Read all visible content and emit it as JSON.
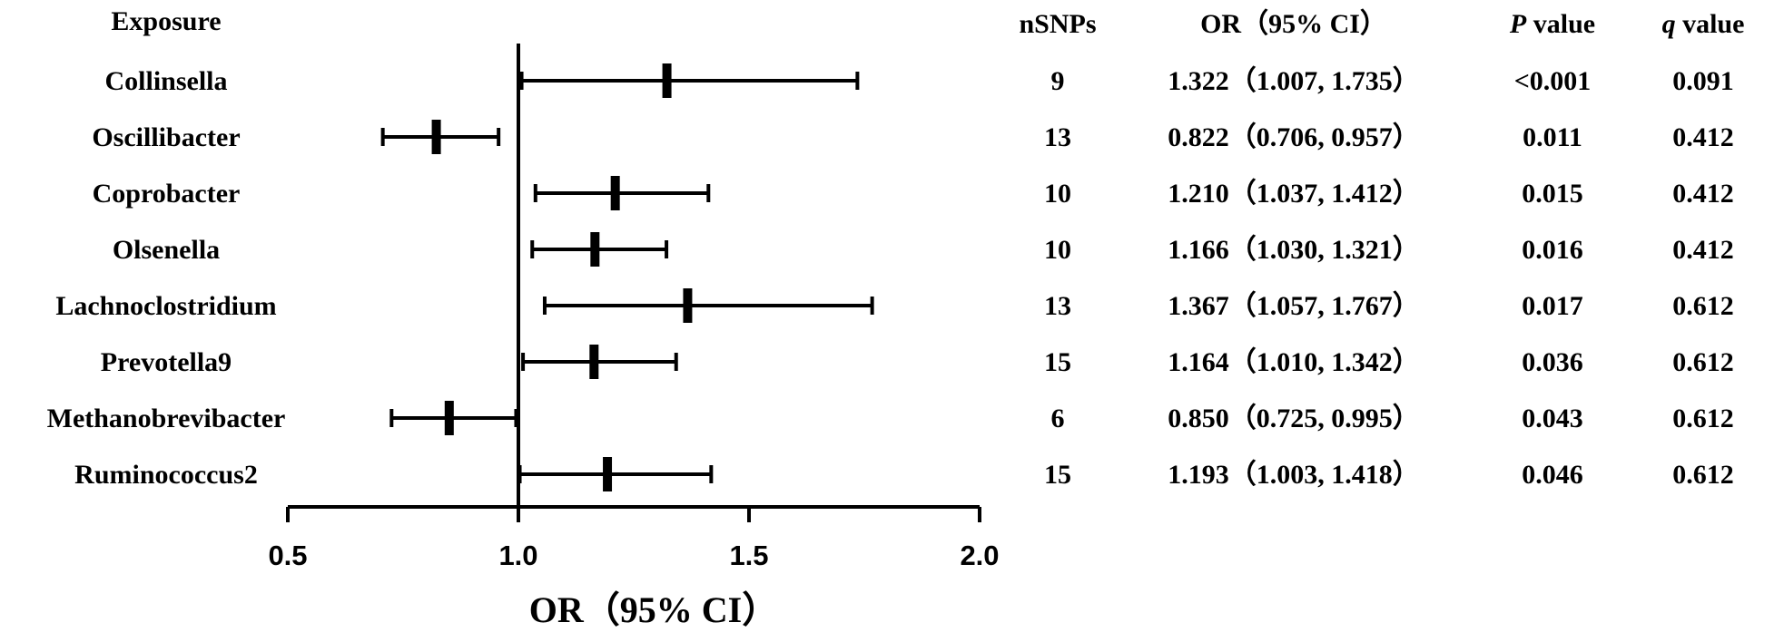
{
  "chart_data": {
    "type": "forest",
    "headers": {
      "exposure": "Exposure",
      "nsnps": "nSNPs",
      "or_ci": "OR（95% CI）",
      "p_italic": "P",
      "p_rest": " value",
      "q_italic": "q",
      "q_rest": " value"
    },
    "xlabel": "OR（95% CI）",
    "xlim": [
      0.5,
      2.0
    ],
    "xticks": [
      0.5,
      1.0,
      1.5,
      2.0
    ],
    "xtick_labels": [
      "0.5",
      "1.0",
      "1.5",
      "2.0"
    ],
    "reference_line": 1.0,
    "rows": [
      {
        "exposure": "Collinsella",
        "nsnps": "9",
        "or": 1.322,
        "lower": 1.007,
        "upper": 1.735,
        "or_text": "1.322（1.007, 1.735）",
        "p": "<0.001",
        "q": "0.091"
      },
      {
        "exposure": "Oscillibacter",
        "nsnps": "13",
        "or": 0.822,
        "lower": 0.706,
        "upper": 0.957,
        "or_text": "0.822（0.706, 0.957）",
        "p": "0.011",
        "q": "0.412"
      },
      {
        "exposure": "Coprobacter",
        "nsnps": "10",
        "or": 1.21,
        "lower": 1.037,
        "upper": 1.412,
        "or_text": "1.210（1.037, 1.412）",
        "p": "0.015",
        "q": "0.412"
      },
      {
        "exposure": "Olsenella",
        "nsnps": "10",
        "or": 1.166,
        "lower": 1.03,
        "upper": 1.321,
        "or_text": "1.166（1.030, 1.321）",
        "p": "0.016",
        "q": "0.412"
      },
      {
        "exposure": "Lachnoclostridium",
        "nsnps": "13",
        "or": 1.367,
        "lower": 1.057,
        "upper": 1.767,
        "or_text": "1.367（1.057, 1.767）",
        "p": "0.017",
        "q": "0.612"
      },
      {
        "exposure": "Prevotella9",
        "nsnps": "15",
        "or": 1.164,
        "lower": 1.01,
        "upper": 1.342,
        "or_text": "1.164（1.010, 1.342）",
        "p": "0.036",
        "q": "0.612"
      },
      {
        "exposure": "Methanobrevibacter",
        "nsnps": "6",
        "or": 0.85,
        "lower": 0.725,
        "upper": 0.995,
        "or_text": "0.850（0.725, 0.995）",
        "p": "0.043",
        "q": "0.612"
      },
      {
        "exposure": "Ruminococcus2",
        "nsnps": "15",
        "or": 1.193,
        "lower": 1.003,
        "upper": 1.418,
        "or_text": "1.193（1.003, 1.418）",
        "p": "0.046",
        "q": "0.612"
      }
    ]
  }
}
